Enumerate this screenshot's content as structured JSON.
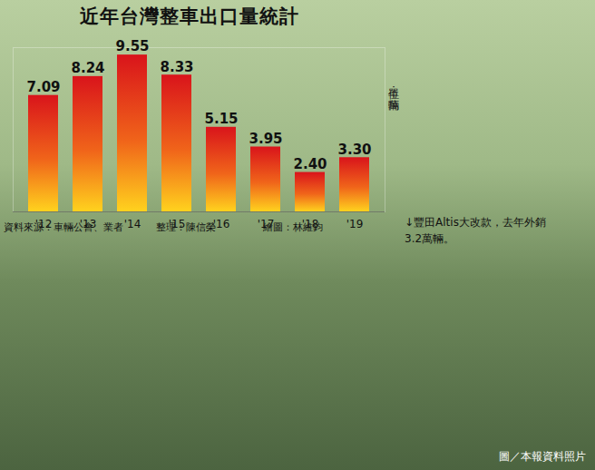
{
  "chart_data": {
    "type": "bar",
    "title": "近年台灣整車出口量統計",
    "y_label": "單位：萬輛",
    "categories": [
      "'12",
      "'13",
      "'14",
      "'15",
      "'16",
      "'17",
      "'18",
      "'19"
    ],
    "values": [
      7.09,
      8.24,
      9.55,
      8.33,
      5.15,
      3.95,
      2.4,
      3.3
    ],
    "value_labels": [
      "7.09",
      "8.24",
      "9.55",
      "8.33",
      "5.15",
      "3.95",
      "2.40",
      "3.30"
    ],
    "data_labels": true,
    "tick_labels": "x",
    "color": "#d9141b",
    "ylim": [
      0,
      10
    ],
    "annotations": [
      "資料來源：車輛公會、業者",
      "整理：陳信榮",
      "繪圖：林維鈞",
      "↓豐田Altis大改款，去年外銷3.2萬輛。",
      "圖／本報資料照片"
    ]
  }
}
